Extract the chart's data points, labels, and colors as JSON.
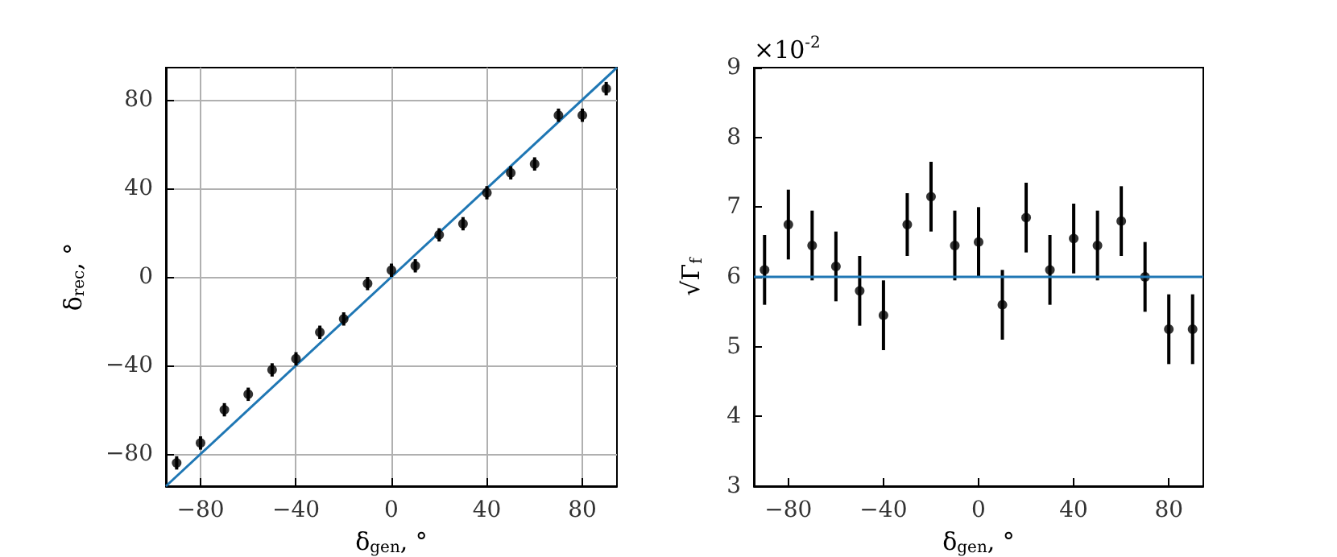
{
  "chart_data": [
    {
      "type": "scatter",
      "xlabel": "δ$_{gen}$, °",
      "ylabel": "δ$_{rec}$, °",
      "x": [
        -90,
        -80,
        -70,
        -60,
        -50,
        -40,
        -30,
        -20,
        -10,
        0,
        10,
        20,
        30,
        40,
        50,
        60,
        70,
        80,
        90
      ],
      "series": [
        {
          "color": "#000000",
          "marker": "circle",
          "values": [
            -84,
            -75,
            -60,
            -53,
            -42,
            -37,
            -25,
            -19,
            -3,
            3,
            5,
            19,
            24,
            38,
            47,
            51,
            73,
            73,
            85
          ],
          "errors": [
            3,
            3,
            3,
            3,
            3,
            3,
            3,
            3,
            3,
            3,
            3,
            3,
            3,
            3,
            3,
            3,
            3,
            3,
            3
          ]
        },
        {
          "type": "line",
          "color": "#1f77b4",
          "x": [
            -94.5,
            94.5
          ],
          "values": [
            -94.5,
            94.5
          ]
        }
      ],
      "xlim": [
        -94.5,
        94.5
      ],
      "ylim": [
        -94.5,
        94.5
      ],
      "xticks": [
        -80,
        -40,
        0,
        40,
        80
      ],
      "yticks": [
        -80,
        -40,
        0,
        40,
        80
      ],
      "grid": true
    },
    {
      "type": "scatter",
      "xlabel": "δ$_{gen}$, °",
      "ylabel": "√Γ$_{f}$",
      "annotations": [
        "×10$^{-2}$"
      ],
      "x": [
        -90,
        -80,
        -70,
        -60,
        -50,
        -40,
        -30,
        -20,
        -10,
        0,
        10,
        20,
        30,
        40,
        50,
        60,
        70,
        80,
        90
      ],
      "series": [
        {
          "color": "#000000",
          "values": [
            6.1,
            6.75,
            6.45,
            6.15,
            5.8,
            5.45,
            6.75,
            7.15,
            6.45,
            6.5,
            5.6,
            6.85,
            6.1,
            6.55,
            6.45,
            6.8,
            6.0,
            5.25,
            5.25
          ],
          "errors": [
            0.5,
            0.5,
            0.5,
            0.5,
            0.5,
            0.5,
            0.45,
            0.5,
            0.5,
            0.5,
            0.5,
            0.5,
            0.5,
            0.5,
            0.5,
            0.5,
            0.5,
            0.5,
            0.5
          ]
        }
      ],
      "ref_lines": [
        {
          "axis": "y",
          "value": 6,
          "color": "#1f77b4"
        }
      ],
      "xlim": [
        -94.5,
        94.5
      ],
      "ylim": [
        3,
        9
      ],
      "xticks": [
        -80,
        -40,
        0,
        40,
        80
      ],
      "yticks": [
        3,
        4,
        5,
        6,
        7,
        8,
        9
      ],
      "marker": "circle"
    }
  ]
}
